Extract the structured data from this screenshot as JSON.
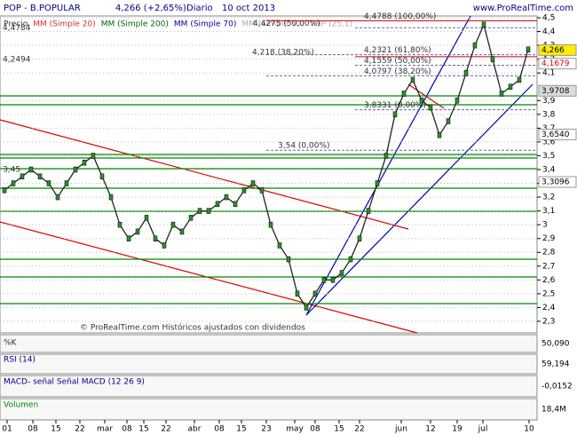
{
  "header": {
    "symbol": "POP - B.POPULAR",
    "price": "4,266 (+2,65%)",
    "period": "Diario",
    "date": "10 oct 2013",
    "site": "www.ProRealTime.com"
  },
  "legend": [
    {
      "name": "Precio",
      "color": "#333333"
    },
    {
      "name": "MM (Simple 20)",
      "color": "#cc3333"
    },
    {
      "name": "MM (Simple 200)",
      "color": "#006600"
    },
    {
      "name": "MM (Simple 70)",
      "color": "#000099"
    },
    {
      "name": "MM (Simple 50)",
      "color": "#aaaaaa"
    },
    {
      "name": "VNP (25,1)",
      "color": "#aaaaaa"
    }
  ],
  "footer": "© ProRealTime.com  Históricos ajustados con dividendos",
  "chart_data": {
    "type": "line",
    "color": "#222222",
    "values": [
      3.25,
      3.3,
      3.35,
      3.4,
      3.35,
      3.3,
      3.2,
      3.3,
      3.4,
      3.45,
      3.5,
      3.35,
      3.2,
      3.0,
      2.9,
      2.95,
      3.05,
      2.9,
      2.85,
      3.0,
      2.95,
      3.05,
      3.1,
      3.1,
      3.15,
      3.2,
      3.15,
      3.25,
      3.3,
      3.25,
      3.0,
      2.85,
      2.75,
      2.5,
      2.4,
      2.5,
      2.6,
      2.6,
      2.65,
      2.75,
      2.9,
      3.1,
      3.3,
      3.5,
      3.8,
      3.95,
      4.05,
      3.9,
      3.85,
      3.65,
      3.75,
      3.9,
      4.1,
      4.3,
      4.45,
      4.2,
      3.95,
      4.0,
      4.05,
      4.27
    ],
    "xlim": [
      -0.5,
      60
    ],
    "ylim": [
      2.216,
      4.513
    ],
    "xticks": [
      {
        "value": 0.3,
        "label": "01"
      },
      {
        "value": 3.2,
        "label": "08"
      },
      {
        "value": 5.8,
        "label": "15"
      },
      {
        "value": 8.5,
        "label": "22"
      },
      {
        "value": 11.3,
        "label": "mar"
      },
      {
        "value": 13.8,
        "label": "08"
      },
      {
        "value": 15.7,
        "label": "15"
      },
      {
        "value": 18.2,
        "label": "22"
      },
      {
        "value": 21.4,
        "label": "abr"
      },
      {
        "value": 24.2,
        "label": "08"
      },
      {
        "value": 26.7,
        "label": "15"
      },
      {
        "value": 29.5,
        "label": "23"
      },
      {
        "value": 32.7,
        "label": "may"
      },
      {
        "value": 35,
        "label": "08"
      },
      {
        "value": 37.7,
        "label": "15"
      },
      {
        "value": 40,
        "label": "22"
      },
      {
        "value": 44.7,
        "label": "jun"
      },
      {
        "value": 48,
        "label": "12"
      },
      {
        "value": 51,
        "label": "19"
      },
      {
        "value": 53.9,
        "label": "jul"
      },
      {
        "value": 59.1,
        "label": "10"
      }
    ],
    "yticks": [
      {
        "value": 4.5,
        "label": "4,5"
      },
      {
        "value": 4.4,
        "label": "4,4"
      },
      {
        "value": 4.3,
        "label": "4,3"
      },
      {
        "value": 4.2,
        "label": "4,2"
      },
      {
        "value": 4.1,
        "label": "4,1"
      },
      {
        "value": 3.9,
        "label": "3,9"
      },
      {
        "value": 3.8,
        "label": "3,8"
      },
      {
        "value": 3.7,
        "label": "3,7"
      },
      {
        "value": 3.6,
        "label": "3,6"
      },
      {
        "value": 3.5,
        "label": "3,5"
      },
      {
        "value": 3.4,
        "label": "3,4"
      },
      {
        "value": 3.3,
        "label": "3,3"
      },
      {
        "value": 3.2,
        "label": "3,2"
      },
      {
        "value": 3.1,
        "label": "3,1"
      },
      3,
      {
        "value": 2.9,
        "label": "2,9"
      },
      {
        "value": 2.8,
        "label": "2,8"
      },
      {
        "value": 2.7,
        "label": "2,7"
      },
      {
        "value": 2.6,
        "label": "2,6"
      },
      {
        "value": 2.5,
        "label": "2,5"
      },
      {
        "value": 2.4,
        "label": "2,4"
      },
      {
        "value": 2.3,
        "label": "2,3"
      }
    ],
    "markers": [
      {
        "value": 4.266,
        "label": "4,266",
        "color": "#ffee00"
      },
      {
        "value": 4.1679,
        "label": "4,1679",
        "color": "#ffffff"
      },
      {
        "value": 3.9708,
        "label": "3,9708",
        "color": "#dddddd"
      },
      {
        "value": 3.654,
        "label": "3,6540",
        "color": "#ffffff"
      },
      {
        "value": 3.3096,
        "label": "3,3096",
        "color": "#ffffff"
      }
    ],
    "annotations": [
      {
        "value": 4.4275,
        "label": "4,4275 (50,00%)"
      },
      {
        "value": 4.4788,
        "label": "4,4788 (100,00%)"
      },
      {
        "value": 4.218,
        "label": "4,218 (38,20%)"
      },
      {
        "value": 4.2321,
        "label": "4,2321 (61,80%)"
      },
      {
        "value": 4.1559,
        "label": "4,1559 (50,00%)"
      },
      {
        "value": 4.0797,
        "label": "4,0797 (38,20%)"
      },
      {
        "value": 3.8331,
        "label": "3,8331 (0,00%)"
      },
      {
        "value": 3.54,
        "label": "3,54 (0,00%)"
      }
    ],
    "left_labels": [
      {
        "value": 4.4784,
        "label": "4,4784"
      },
      {
        "value": 4.2494,
        "label": "4,2494"
      },
      {
        "value": 3.45,
        "label": "3,45"
      }
    ]
  },
  "panels": [
    {
      "title": "RSI (14)",
      "value": "59,194"
    },
    {
      "title": "MACD- señal Señal MACD (12 26 9)",
      "value": "-0,0152"
    },
    {
      "title": "Volumen",
      "value": "18,4M"
    }
  ],
  "mm_value": "50,090"
}
